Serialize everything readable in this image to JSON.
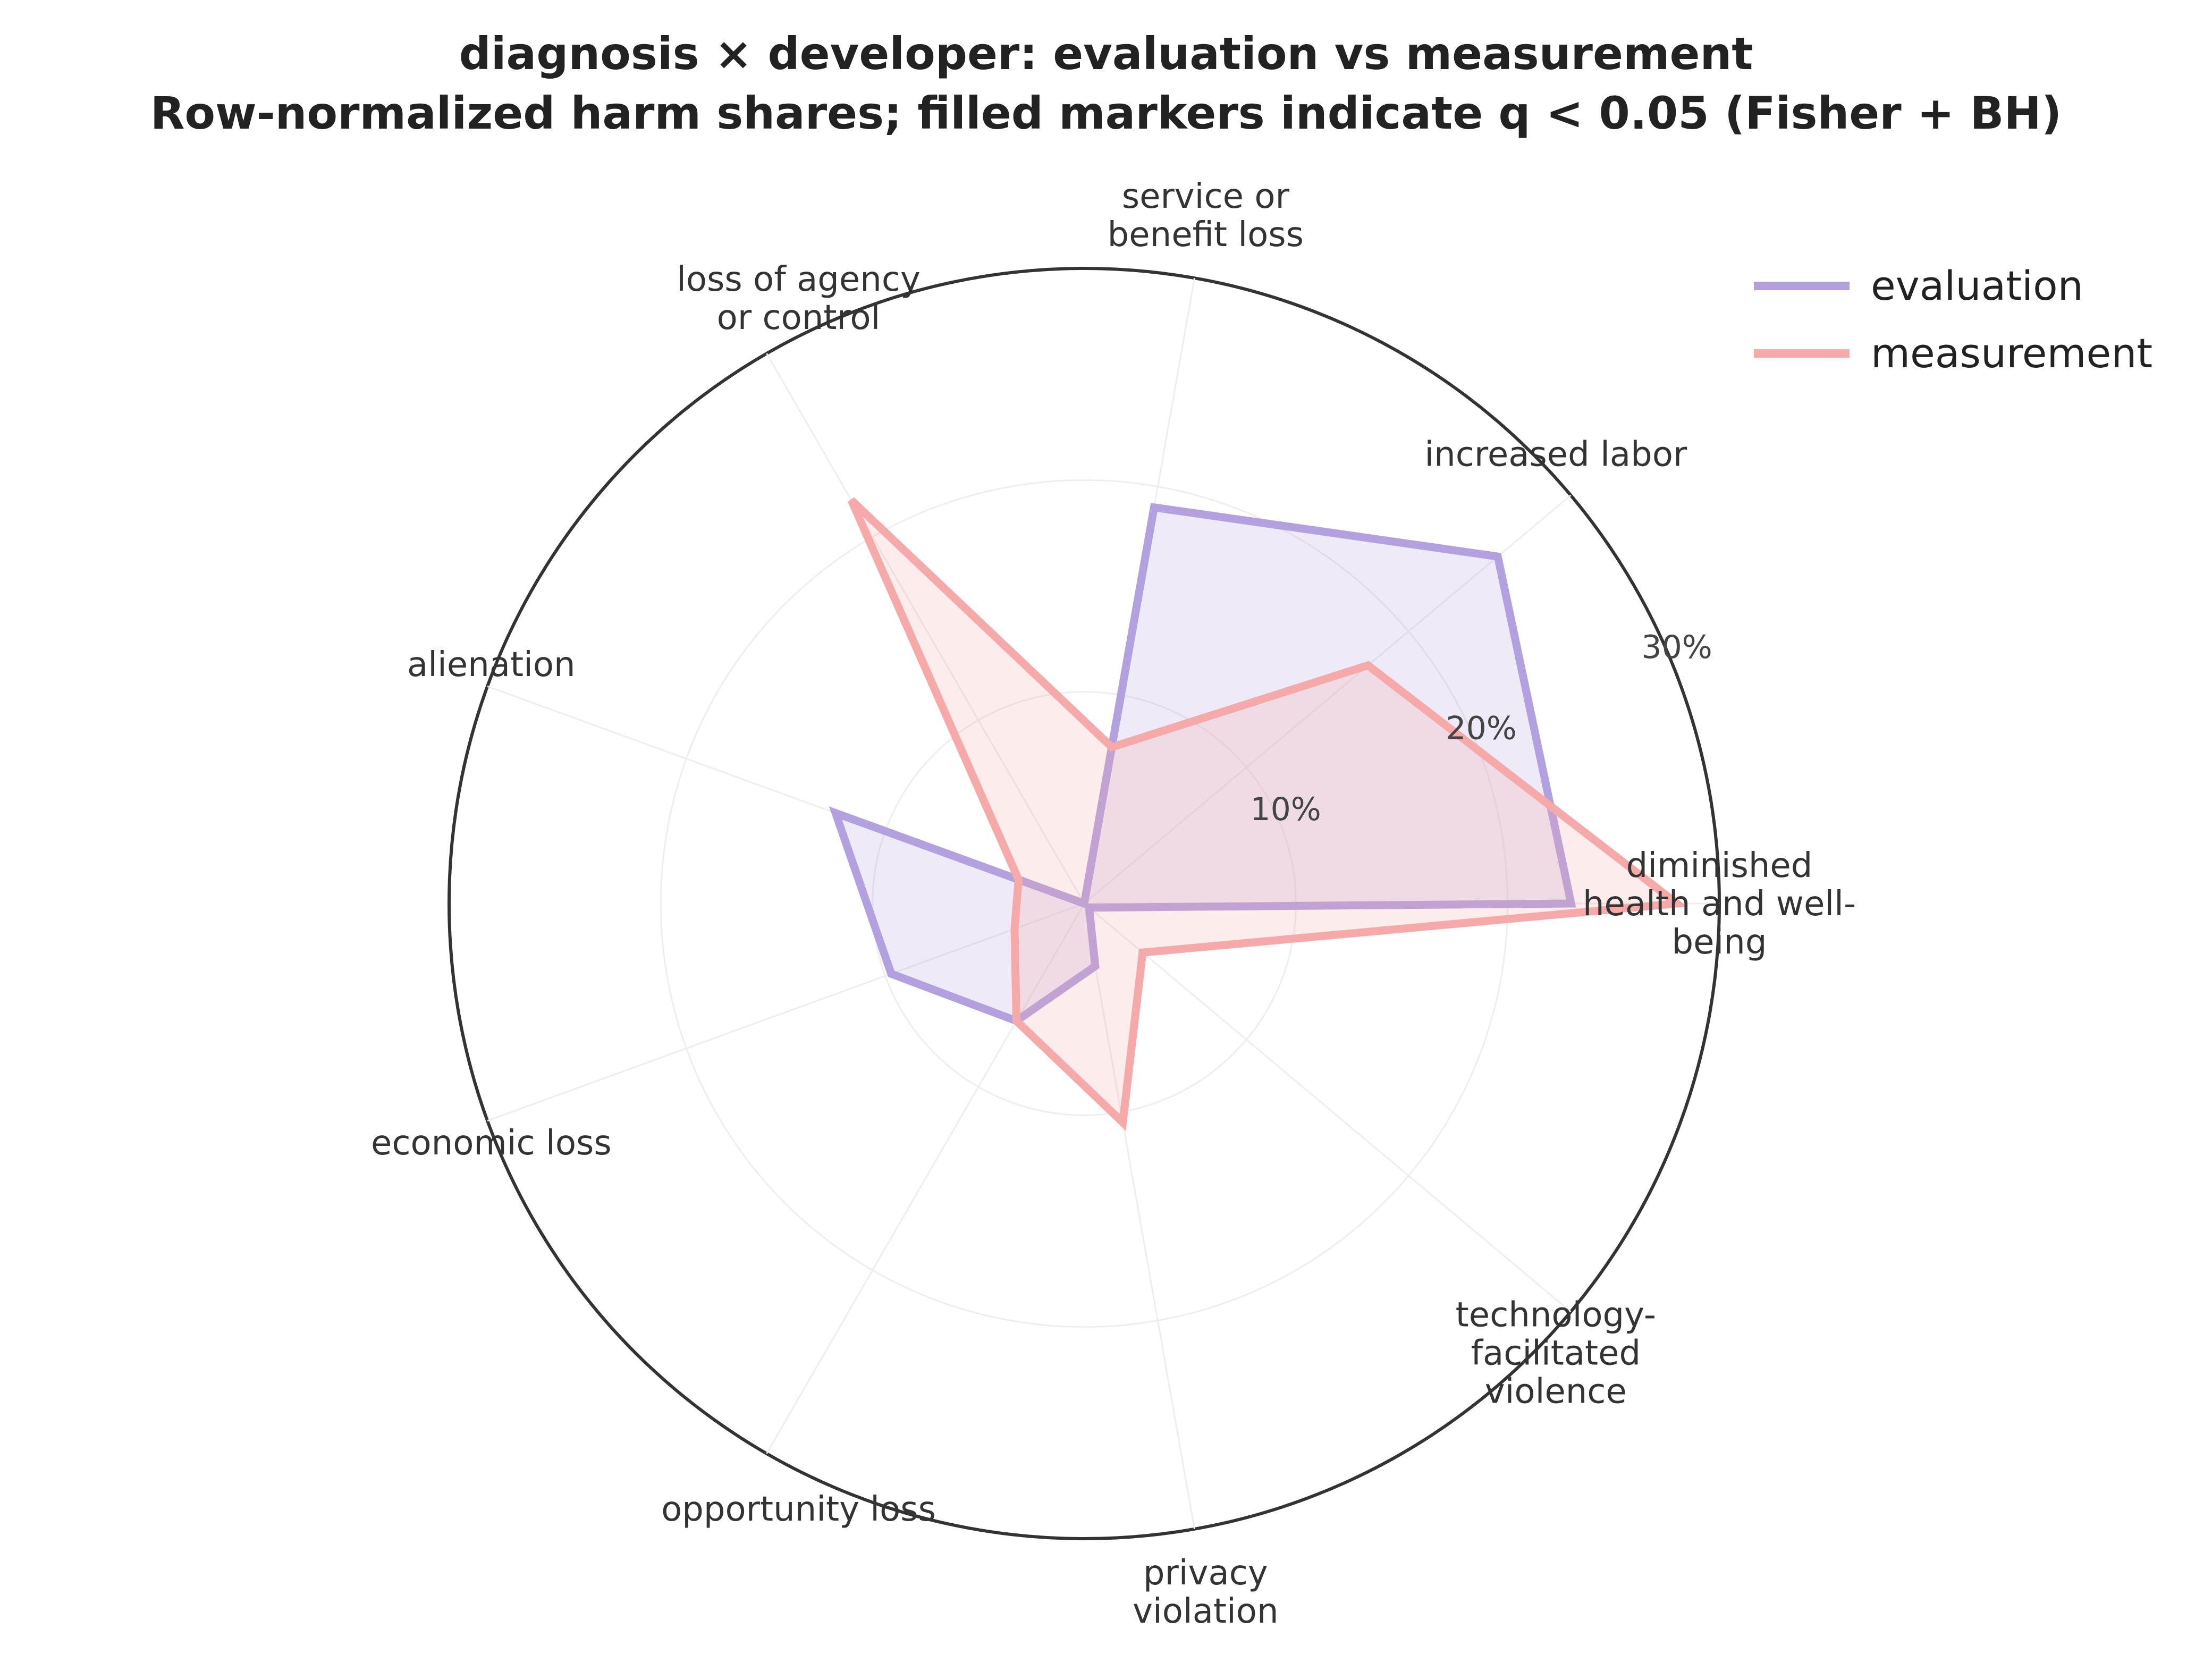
{
  "chart_data": {
    "type": "radar",
    "title": "diagnosis × developer: evaluation vs measurement",
    "subtitle": "Row-normalized harm shares; filled markers indicate q < 0.05 (Fisher + BH)",
    "categories": [
      [
        "diminished",
        "health and well-",
        "being"
      ],
      [
        "increased labor"
      ],
      [
        "service or",
        "benefit loss"
      ],
      [
        "loss of agency",
        "or control"
      ],
      [
        "alienation"
      ],
      [
        "economic loss"
      ],
      [
        "opportunity loss"
      ],
      [
        "privacy",
        "violation"
      ],
      [
        "technology-",
        "facilitated",
        "violence"
      ]
    ],
    "rlim": [
      0,
      30
    ],
    "rticks": [
      10,
      20,
      30
    ],
    "rtick_labels": [
      "10%",
      "20%",
      "30%"
    ],
    "series": [
      {
        "name": "evaluation",
        "color": "#b3a1df",
        "values": [
          23,
          25.5,
          19,
          0,
          12.5,
          9.7,
          6.4,
          3.0,
          0.3
        ]
      },
      {
        "name": "measurement",
        "color": "#f5a9a9",
        "values": [
          28,
          17.5,
          7.5,
          22,
          3.3,
          3.5,
          6.4,
          10.5,
          3.6
        ]
      }
    ],
    "legend": "top-right",
    "grid": true
  }
}
